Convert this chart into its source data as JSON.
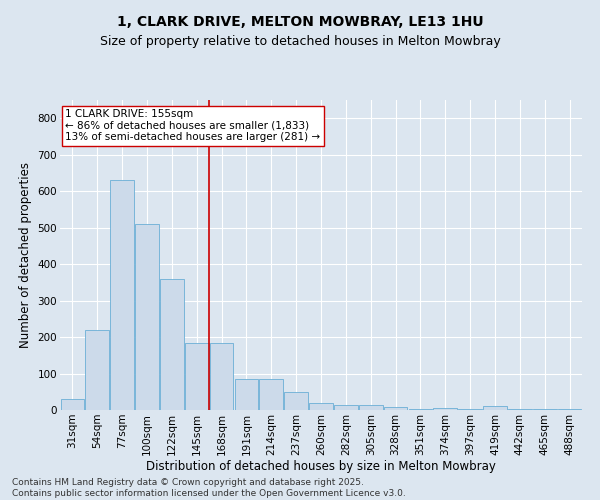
{
  "title": "1, CLARK DRIVE, MELTON MOWBRAY, LE13 1HU",
  "subtitle": "Size of property relative to detached houses in Melton Mowbray",
  "xlabel": "Distribution of detached houses by size in Melton Mowbray",
  "ylabel": "Number of detached properties",
  "bin_labels": [
    "31sqm",
    "54sqm",
    "77sqm",
    "100sqm",
    "122sqm",
    "145sqm",
    "168sqm",
    "191sqm",
    "214sqm",
    "237sqm",
    "260sqm",
    "282sqm",
    "305sqm",
    "328sqm",
    "351sqm",
    "374sqm",
    "397sqm",
    "419sqm",
    "442sqm",
    "465sqm",
    "488sqm"
  ],
  "bar_values": [
    30,
    220,
    630,
    510,
    360,
    185,
    185,
    85,
    85,
    50,
    20,
    13,
    13,
    8,
    2,
    6,
    2,
    10,
    2,
    2,
    2
  ],
  "bar_color": "#ccdaea",
  "bar_edge_color": "#6aaed6",
  "vline_x": 5.5,
  "vline_color": "#cc0000",
  "annotation_text": "1 CLARK DRIVE: 155sqm\n← 86% of detached houses are smaller (1,833)\n13% of semi-detached houses are larger (281) →",
  "annotation_box_color": "#ffffff",
  "annotation_box_edge": "#cc0000",
  "ylim": [
    0,
    850
  ],
  "yticks": [
    0,
    100,
    200,
    300,
    400,
    500,
    600,
    700,
    800
  ],
  "background_color": "#dce6f0",
  "plot_bg_color": "#dce6f0",
  "footer": "Contains HM Land Registry data © Crown copyright and database right 2025.\nContains public sector information licensed under the Open Government Licence v3.0.",
  "title_fontsize": 10,
  "subtitle_fontsize": 9,
  "xlabel_fontsize": 8.5,
  "ylabel_fontsize": 8.5,
  "tick_fontsize": 7.5,
  "annotation_fontsize": 7.5,
  "footer_fontsize": 6.5
}
